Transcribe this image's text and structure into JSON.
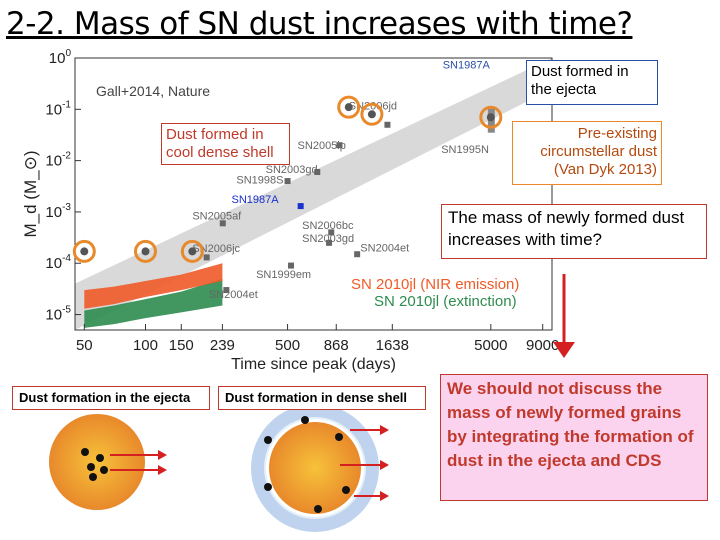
{
  "slide": {
    "title": "2-2. Mass of SN dust increases with time?"
  },
  "chart_data": {
    "type": "scatter",
    "xscale": "log",
    "yscale": "log",
    "xlim": [
      45,
      10000
    ],
    "ylim": [
      5e-06,
      1
    ],
    "xlabel": "Time since peak (days)",
    "ylabel": "M_d (M_⊙)",
    "xticks": [
      "50",
      "100",
      "150",
      "239",
      "500",
      "868",
      "1638",
      "5000",
      "9000"
    ],
    "xtick_values": [
      50,
      100,
      150,
      239,
      500,
      868,
      1638,
      5000,
      9000
    ],
    "yticks": [
      "10^0",
      "10^-1",
      "10^-2",
      "10^-3",
      "10^-4",
      "10^-5"
    ],
    "ytick_values": [
      1,
      0.1,
      0.01,
      0.001,
      0.0001,
      1e-05
    ],
    "reference": "Gall+2014, Nature",
    "points": [
      {
        "label": "SN1987A",
        "x": 9000,
        "y": 0.4,
        "color": "#2a4fa8",
        "marker": "bar"
      },
      {
        "label": "SN1995N",
        "x": 5000,
        "y": 0.06,
        "color": "#888888",
        "marker": "bar"
      },
      {
        "label": "SN2006jd",
        "x": 1550,
        "y": 0.05,
        "color": "#666666",
        "marker": "square"
      },
      {
        "label": "SN2005ip",
        "x": 900,
        "y": 0.02,
        "color": "#666666",
        "marker": "square"
      },
      {
        "label": "SN2003gd",
        "x": 700,
        "y": 0.006,
        "color": "#666666",
        "marker": "square"
      },
      {
        "label": "SN1998S",
        "x": 500,
        "y": 0.004,
        "color": "#666666",
        "marker": "square"
      },
      {
        "label": "SN1987A",
        "x": 580,
        "y": 0.0013,
        "color": "#1a2fd0",
        "marker": "square"
      },
      {
        "label": "SN2005af",
        "x": 240,
        "y": 0.0006,
        "color": "#666666",
        "marker": "square"
      },
      {
        "label": "SN2006bc",
        "x": 820,
        "y": 0.0004,
        "color": "#666666",
        "marker": "square"
      },
      {
        "label": "SN2003gd",
        "x": 800,
        "y": 0.00025,
        "color": "#666666",
        "marker": "square"
      },
      {
        "label": "SN2004et",
        "x": 1100,
        "y": 0.00015,
        "color": "#666666",
        "marker": "square"
      },
      {
        "label": "SN1999em",
        "x": 520,
        "y": 9e-05,
        "color": "#666666",
        "marker": "square"
      },
      {
        "label": "SN2006jc",
        "x": 200,
        "y": 0.00013,
        "color": "#666666",
        "marker": "square"
      },
      {
        "label": "SN2004et",
        "x": 250,
        "y": 3e-05,
        "color": "#666666",
        "marker": "square"
      }
    ],
    "point_labels": [
      {
        "text": "SN1987A",
        "x": 2900,
        "y": 0.62,
        "color": "#2a4fa8"
      },
      {
        "text": "SN1995N",
        "x": 2850,
        "y": 0.014,
        "color": "#666666"
      },
      {
        "text": "SN2006jd",
        "x": 1000,
        "y": 0.1,
        "color": "#666666"
      },
      {
        "text": "SN2005ip",
        "x": 560,
        "y": 0.017,
        "color": "#666666"
      },
      {
        "text": "SN2003gd",
        "x": 390,
        "y": 0.0058,
        "color": "#666666"
      },
      {
        "text": "SN1998S",
        "x": 280,
        "y": 0.0036,
        "color": "#666666"
      },
      {
        "text": "SN1987A",
        "x": 265,
        "y": 0.0015,
        "color": "#1a2fd0"
      },
      {
        "text": "SN2005af",
        "x": 170,
        "y": 0.00072,
        "color": "#666666"
      },
      {
        "text": "SN2006bc",
        "x": 590,
        "y": 0.00046,
        "color": "#666666"
      },
      {
        "text": "SN2003gd",
        "x": 590,
        "y": 0.00026,
        "color": "#666666"
      },
      {
        "text": "SN2004et",
        "x": 1140,
        "y": 0.00017,
        "color": "#666666"
      },
      {
        "text": "SN1999em",
        "x": 350,
        "y": 5.2e-05,
        "color": "#666666"
      },
      {
        "text": "SN2006jc",
        "x": 170,
        "y": 0.000165,
        "color": "#666666"
      },
      {
        "text": "SN2004et",
        "x": 205,
        "y": 2.1e-05,
        "color": "#666666"
      }
    ],
    "highlighted_points": [
      {
        "x": 50,
        "y": 0.00017,
        "color": "#e8892b"
      },
      {
        "x": 100,
        "y": 0.00017,
        "color": "#e8892b"
      },
      {
        "x": 170,
        "y": 0.00017,
        "color": "#e8892b"
      },
      {
        "x": 1000,
        "y": 0.11,
        "color": "#e8892b"
      },
      {
        "x": 1300,
        "y": 0.08,
        "color": "#e8892b"
      },
      {
        "x": 5000,
        "y": 0.07,
        "color": "#e8892b"
      }
    ],
    "series": [
      {
        "name": "SN 2010jl (NIR emission)",
        "color": "#f05a28",
        "x": [
          50,
          70,
          100,
          150,
          239
        ],
        "y_low": [
          1.3e-05,
          1.6e-05,
          2.2e-05,
          3e-05,
          4.5e-05
        ],
        "y_high": [
          3e-05,
          3.5e-05,
          4.5e-05,
          6e-05,
          0.0001
        ]
      },
      {
        "name": "SN 2010jl (extinction)",
        "color": "#2e8b4e",
        "x": [
          50,
          70,
          100,
          150,
          239
        ],
        "y_low": [
          5.5e-06,
          6.5e-06,
          8.5e-06,
          1.1e-05,
          1.5e-05
        ],
        "y_high": [
          1.2e-05,
          1.5e-05,
          2e-05,
          2.8e-05,
          5e-05
        ]
      }
    ],
    "trend_band": {
      "color": "#d0d0d0",
      "x": [
        45,
        10000
      ],
      "y_low": [
        5e-06,
        0.25
      ],
      "y_high": [
        4e-05,
        1
      ]
    }
  },
  "annotations": {
    "ejecta": "Dust formed in the ejecta",
    "cds": "Dust formed in cool dense shell",
    "preexisting": "Pre-existing circumstellar dust (Van Dyk 2013)",
    "question": "The mass of newly formed dust increases with time?",
    "conclusion": "We should not discuss the mass of newly formed grains by integrating the formation of dust in the ejecta and CDS"
  },
  "panels": {
    "ejecta_label": "Dust formation in the ejecta",
    "dense_label": "Dust formation in dense shell"
  },
  "colors": {
    "accent_red": "#c0392b",
    "orange": "#e8892b",
    "blue": "#2a4fa8",
    "conclusion_bg": "#fcd3ef"
  }
}
